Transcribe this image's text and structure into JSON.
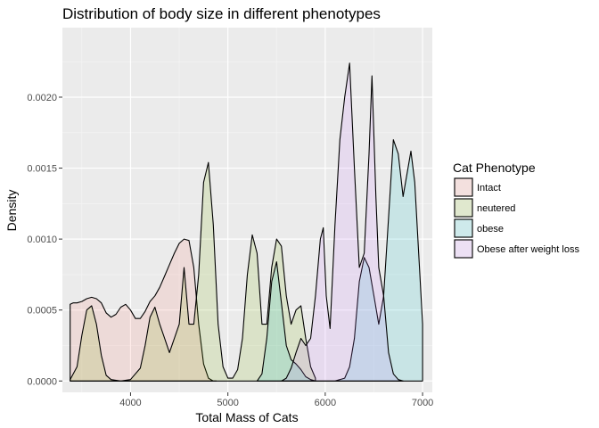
{
  "chart_data": {
    "type": "area",
    "title": "Distribution of body size in different phenotypes",
    "xlabel": "Total Mass of Cats",
    "ylabel": "Density",
    "xlim": [
      3300,
      7100
    ],
    "ylim": [
      -8e-05,
      0.00249
    ],
    "x_ticks": [
      4000,
      5000,
      6000,
      7000
    ],
    "x_tick_labels": [
      "4000",
      "5000",
      "6000",
      "7000"
    ],
    "y_ticks": [
      0,
      0.0005,
      0.001,
      0.0015,
      0.002
    ],
    "y_tick_labels": [
      "0.0000",
      "0.0005",
      "0.0010",
      "0.0015",
      "0.0020"
    ],
    "grid": true,
    "legend": {
      "title": "Cat Phenotype",
      "position": "right"
    },
    "series": [
      {
        "name": "Intact",
        "color": "#F8766D",
        "x": [
          3380,
          3410,
          3450,
          3500,
          3550,
          3600,
          3650,
          3700,
          3750,
          3800,
          3850,
          3900,
          3950,
          4000,
          4050,
          4100,
          4150,
          4200,
          4250,
          4300,
          4350,
          4400,
          4450,
          4500,
          4550,
          4600,
          4650,
          4700,
          4750,
          4800,
          4850,
          4880
        ],
        "values": [
          0.00054,
          0.00055,
          0.00055,
          0.00056,
          0.00058,
          0.00059,
          0.00058,
          0.00055,
          0.00048,
          0.00045,
          0.00047,
          0.00052,
          0.00054,
          0.0005,
          0.00044,
          0.00044,
          0.00049,
          0.00056,
          0.0006,
          0.00066,
          0.00074,
          0.00082,
          0.0009,
          0.00097,
          0.001,
          0.00099,
          0.0008,
          0.0004,
          0.00012,
          2e-05,
          0.0,
          0.0
        ]
      },
      {
        "name": "neutered",
        "color": "#7CAE00",
        "x": [
          3380,
          3450,
          3500,
          3550,
          3600,
          3650,
          3700,
          3750,
          3800,
          3900,
          4000,
          4100,
          4150,
          4200,
          4250,
          4300,
          4350,
          4400,
          4450,
          4500,
          4550,
          4600,
          4650,
          4700,
          4750,
          4800,
          4850,
          4900,
          4950,
          5000,
          5050,
          5100,
          5150,
          5200,
          5250,
          5300,
          5350,
          5400,
          5450,
          5500,
          5550,
          5600,
          5650,
          5700,
          5750,
          5800,
          5850,
          5900
        ],
        "values": [
          1e-05,
          0.0001,
          0.00032,
          0.0005,
          0.00053,
          0.0004,
          0.00018,
          4e-05,
          1e-05,
          0.0,
          1e-05,
          9e-05,
          0.00025,
          0.00045,
          0.00052,
          0.0004,
          0.0003,
          0.0002,
          0.0003,
          0.0004,
          0.0008,
          0.0004,
          0.0004,
          0.00075,
          0.0014,
          0.00154,
          0.0011,
          0.0004,
          0.0001,
          2e-05,
          2e-05,
          8e-05,
          0.0003,
          0.00075,
          0.00103,
          0.0009,
          0.0004,
          0.0004,
          0.0008,
          0.001,
          0.00095,
          0.0006,
          0.0004,
          0.0005,
          0.00053,
          0.0003,
          0.0001,
          2e-05
        ]
      },
      {
        "name": "obese",
        "color": "#00BFC4",
        "x": [
          5300,
          5350,
          5400,
          5450,
          5500,
          5550,
          5600,
          5650,
          5700,
          5750,
          5800,
          5850,
          5900,
          5950,
          6000,
          6100,
          6200,
          6250,
          6300,
          6350,
          6400,
          6450,
          6500,
          6550,
          6600,
          6650,
          6700,
          6750,
          6800,
          6850,
          6880,
          6920,
          6960,
          7000,
          7000
        ],
        "values": [
          0.0,
          5e-05,
          0.0003,
          0.0007,
          0.00084,
          0.00055,
          0.00025,
          0.00015,
          0.00012,
          8e-05,
          3e-05,
          1e-05,
          0.0,
          0.0,
          0.0,
          0.0,
          2e-05,
          0.0001,
          0.0003,
          0.0007,
          0.00087,
          0.0008,
          0.0006,
          0.0004,
          0.0006,
          0.00115,
          0.0017,
          0.0016,
          0.0013,
          0.0015,
          0.00162,
          0.0014,
          0.0009,
          0.0004,
          0.0
        ]
      },
      {
        "name": "Obese after weight loss",
        "color": "#C77CFF",
        "x": [
          5550,
          5600,
          5650,
          5700,
          5750,
          5800,
          5850,
          5900,
          5950,
          5980,
          6010,
          6050,
          6100,
          6150,
          6200,
          6250,
          6300,
          6350,
          6400,
          6450,
          6480,
          6520,
          6550,
          6600,
          6650,
          6700,
          6750,
          6800
        ],
        "values": [
          0.0,
          2e-05,
          9e-05,
          0.0002,
          0.0003,
          0.00025,
          0.0003,
          0.0006,
          0.001,
          0.00108,
          0.0006,
          0.00037,
          0.0011,
          0.0017,
          0.002,
          0.00224,
          0.0015,
          0.0008,
          0.0009,
          0.0016,
          0.00215,
          0.0013,
          0.0008,
          0.0006,
          0.0002,
          5e-05,
          1e-05,
          0.0
        ]
      }
    ]
  }
}
